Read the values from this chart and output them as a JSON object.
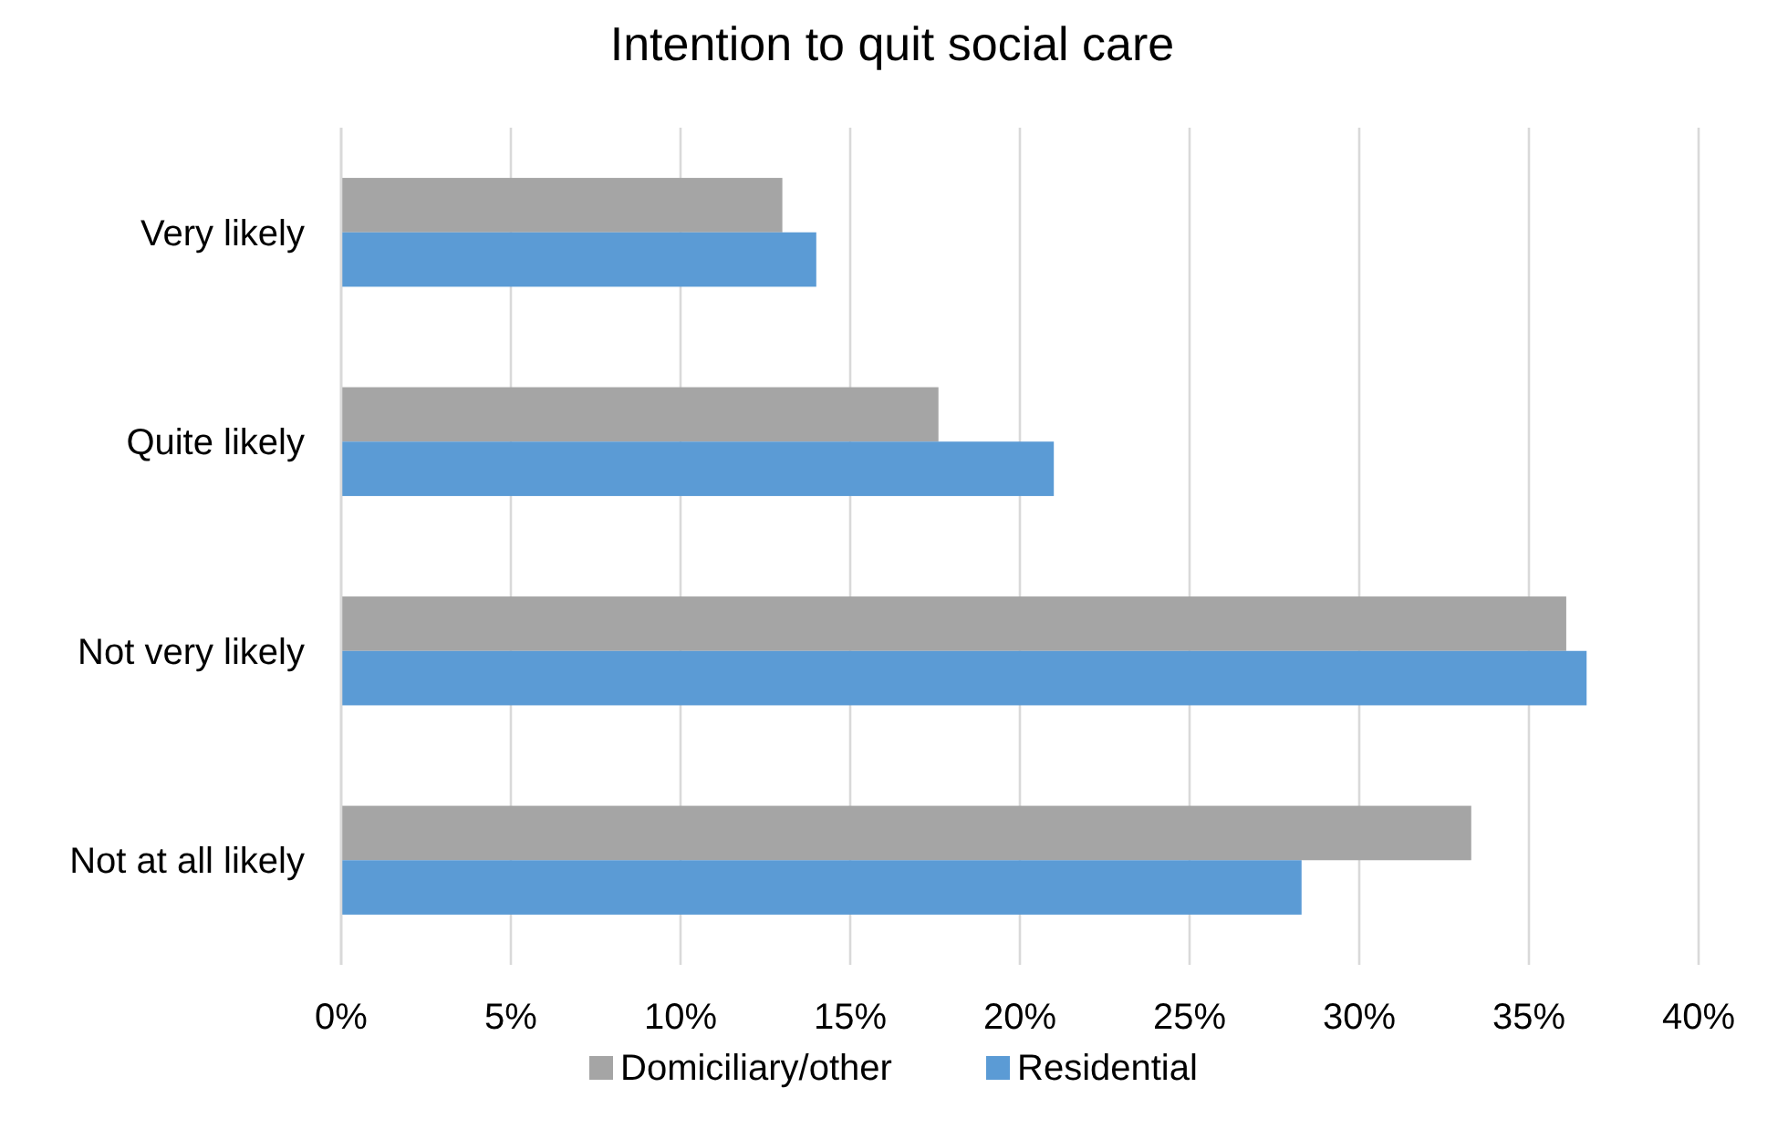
{
  "chart_data": {
    "type": "bar",
    "orientation": "horizontal",
    "title": "Intention to quit social care",
    "categories": [
      "Very likely",
      "Quite likely",
      "Not very likely",
      "Not at all likely"
    ],
    "series": [
      {
        "name": "Domiciliary/other",
        "color": "#a5a5a5",
        "values": [
          13,
          17.6,
          36.1,
          33.3
        ]
      },
      {
        "name": "Residential",
        "color": "#5b9bd5",
        "values": [
          14,
          21,
          36.7,
          28.3
        ]
      }
    ],
    "xlim": [
      0,
      40
    ],
    "xticks": [
      {
        "value": 0,
        "label": "0%"
      },
      {
        "value": 5,
        "label": "5%"
      },
      {
        "value": 10,
        "label": "10%"
      },
      {
        "value": 15,
        "label": "15%"
      },
      {
        "value": 20,
        "label": "20%"
      },
      {
        "value": 25,
        "label": "25%"
      },
      {
        "value": 30,
        "label": "30%"
      },
      {
        "value": 35,
        "label": "35%"
      },
      {
        "value": 40,
        "label": "40%"
      }
    ],
    "grid": "x",
    "legend": "bottom"
  }
}
